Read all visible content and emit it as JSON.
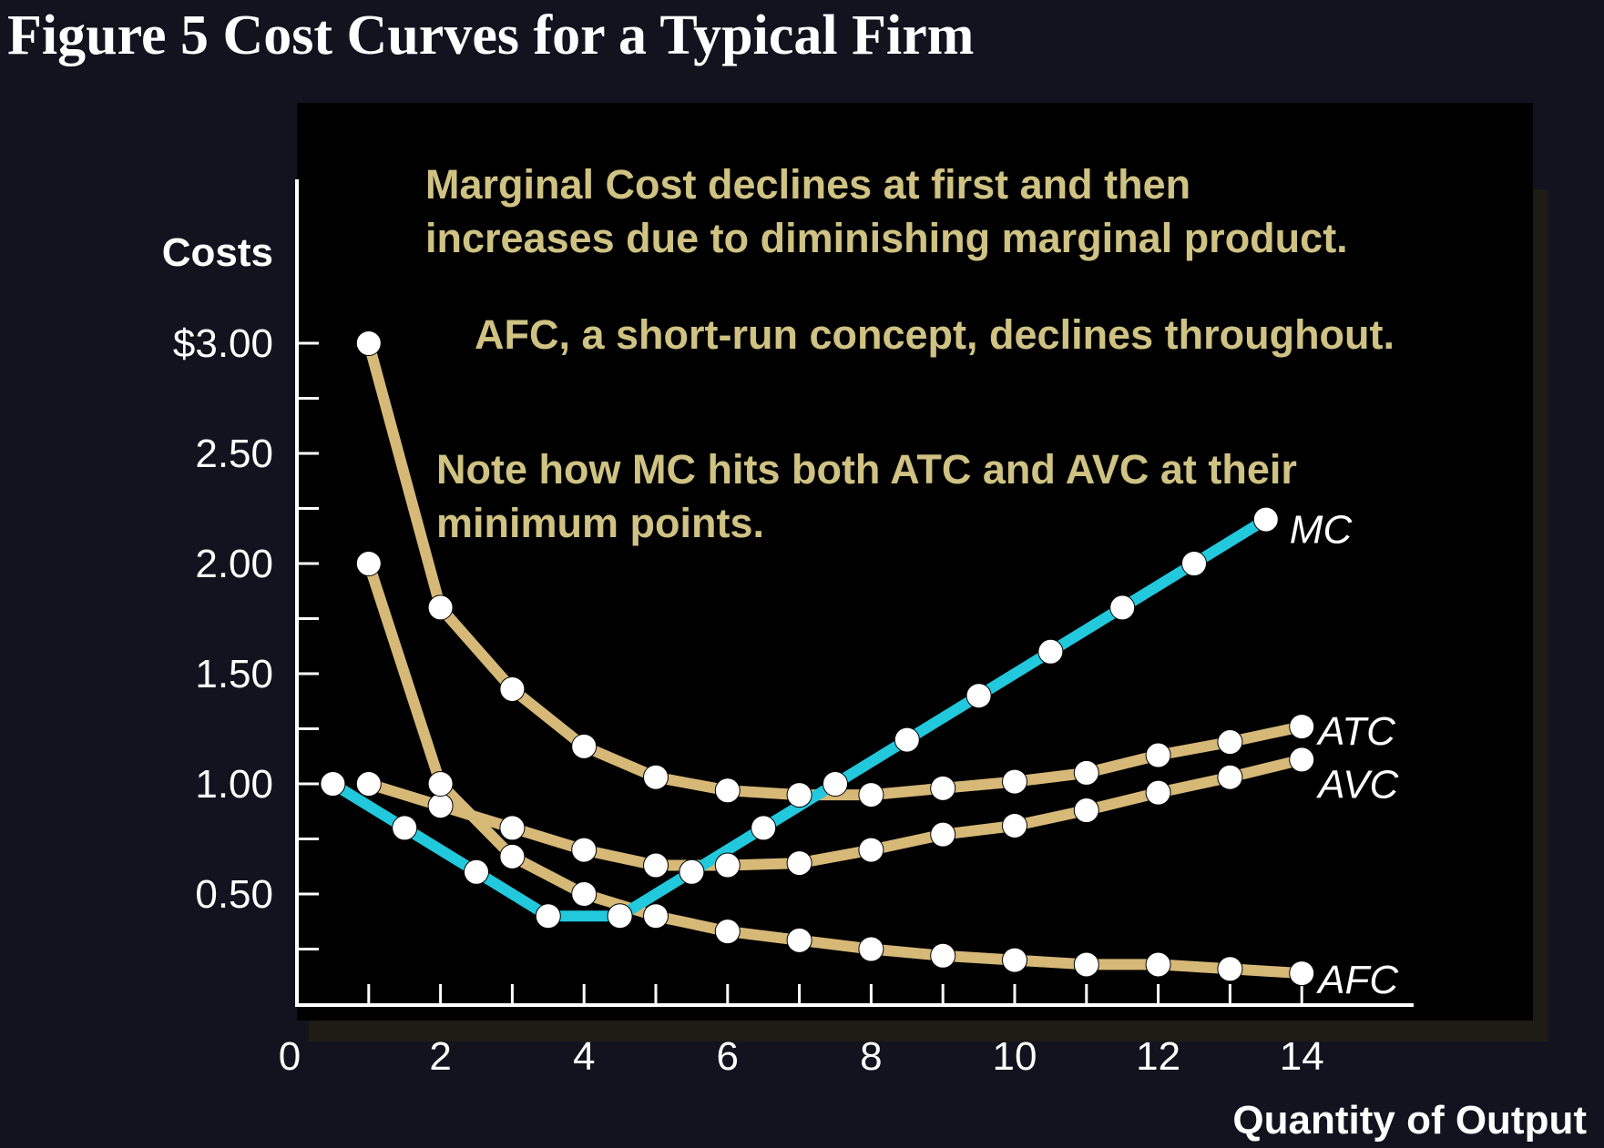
{
  "title": "Figure 5 Cost Curves for a Typical Firm",
  "colors": {
    "background": "#12131f",
    "panel": "#000000",
    "tan_curve": "#d6b877",
    "mc_curve": "#22c8dc",
    "marker": "#ffffff",
    "annotation_text": "#cfc283",
    "axis": "#ffffff"
  },
  "annotations": {
    "mc_note_line1": "Marginal Cost declines at first and then",
    "mc_note_line2": "increases due to diminishing marginal product.",
    "afc_note": "AFC, a short-run concept, declines throughout.",
    "min_note_line1": "Note how MC hits both ATC and AVC at their",
    "min_note_line2": "minimum points."
  },
  "chart_data": {
    "type": "line",
    "title": "Figure 5 Cost Curves for a Typical Firm",
    "xlabel": "Quantity of Output",
    "ylabel": "Costs",
    "xlim": [
      0,
      15
    ],
    "ylim": [
      0,
      3.0
    ],
    "x_ticks": [
      0,
      2,
      4,
      6,
      8,
      10,
      12,
      14
    ],
    "x_tick_labels": [
      "0",
      "2",
      "4",
      "6",
      "8",
      "10",
      "12",
      "14"
    ],
    "y_ticks": [
      0.5,
      1.0,
      1.5,
      2.0,
      2.5,
      3.0
    ],
    "y_tick_labels": [
      "0.50",
      "1.00",
      "1.50",
      "2.00",
      "2.50",
      "$3.00"
    ],
    "series": [
      {
        "name": "ATC",
        "color": "#d6b877",
        "x": [
          1,
          2,
          3,
          4,
          5,
          6,
          7,
          8,
          9,
          10,
          11,
          12,
          13,
          14
        ],
        "y": [
          3.0,
          1.8,
          1.43,
          1.17,
          1.03,
          0.97,
          0.95,
          0.95,
          0.98,
          1.01,
          1.05,
          1.13,
          1.19,
          1.26
        ]
      },
      {
        "name": "AVC",
        "color": "#d6b877",
        "x": [
          1,
          2,
          3,
          4,
          5,
          6,
          7,
          8,
          9,
          10,
          11,
          12,
          13,
          14
        ],
        "y": [
          1.0,
          0.9,
          0.8,
          0.7,
          0.63,
          0.63,
          0.64,
          0.7,
          0.77,
          0.81,
          0.88,
          0.96,
          1.03,
          1.11
        ]
      },
      {
        "name": "AFC",
        "color": "#d6b877",
        "x": [
          1,
          2,
          3,
          4,
          5,
          6,
          7,
          8,
          9,
          10,
          11,
          12,
          13,
          14
        ],
        "y": [
          2.0,
          1.0,
          0.67,
          0.5,
          0.4,
          0.33,
          0.29,
          0.25,
          0.22,
          0.2,
          0.18,
          0.18,
          0.16,
          0.14
        ]
      },
      {
        "name": "MC",
        "color": "#22c8dc",
        "x": [
          0.5,
          1.5,
          2.5,
          3.5,
          4.5,
          5.5,
          6.5,
          7.5,
          8.5,
          9.5,
          10.5,
          11.5,
          12.5,
          13.5
        ],
        "y": [
          1.0,
          0.8,
          0.6,
          0.4,
          0.4,
          0.6,
          0.8,
          1.0,
          1.2,
          1.4,
          1.6,
          1.8,
          2.0,
          2.2
        ]
      }
    ]
  }
}
